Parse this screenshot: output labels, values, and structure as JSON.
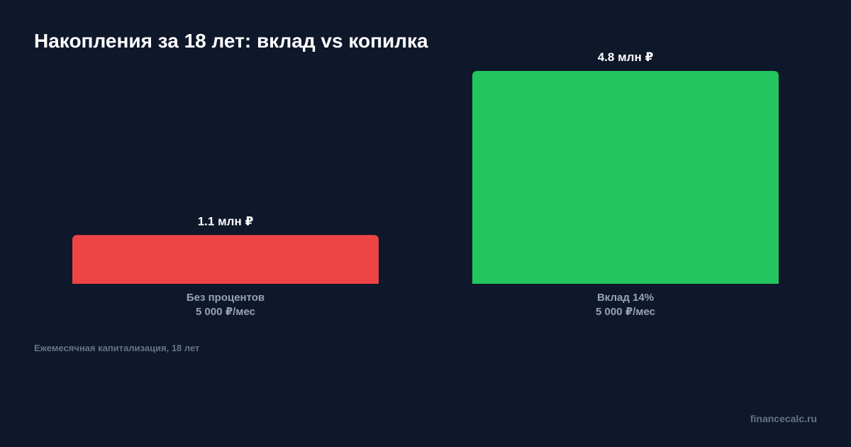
{
  "title": "Накопления за 18 лет: вклад vs копилка",
  "note": "Ежемесячная капитализация, 18 лет",
  "brand": "financecalc.ru",
  "chart_data": {
    "type": "bar",
    "title": "Накопления за 18 лет: вклад vs копилка",
    "xlabel": "",
    "ylabel": "",
    "ylim": [
      0,
      4.8
    ],
    "grid": false,
    "categories": [
      [
        "Без процентов",
        "5 000 ₽/мес"
      ],
      [
        "Вклад 14%",
        "5 000 ₽/мес"
      ]
    ],
    "values": [
      1.1,
      4.8
    ],
    "value_labels": [
      "1.1 млн ₽",
      "4.8 млн ₽"
    ],
    "colors": [
      "#ef4444",
      "#22c55e"
    ]
  }
}
